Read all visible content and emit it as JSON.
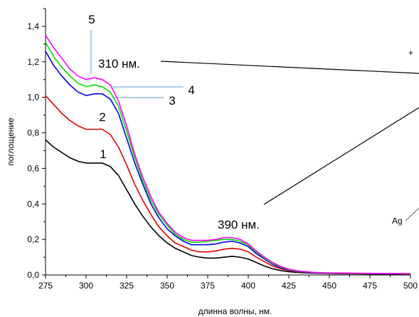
{
  "chart_data": {
    "type": "line",
    "title": "",
    "xlabel": "длинна волны, нм.",
    "ylabel": "поглощение",
    "xlim": [
      275,
      500
    ],
    "ylim": [
      0.0,
      1.5
    ],
    "x_ticks": [
      "275",
      "300",
      "325",
      "350",
      "375",
      "400",
      "425",
      "450",
      "475",
      "500"
    ],
    "y_ticks": [
      "0,0",
      "0,2",
      "0,4",
      "0,6",
      "0,8",
      "1,0",
      "1,2",
      "1,4"
    ],
    "grid": false,
    "legend": "none",
    "x": [
      275,
      280,
      285,
      290,
      295,
      300,
      305,
      310,
      315,
      320,
      325,
      330,
      335,
      340,
      345,
      350,
      355,
      360,
      365,
      370,
      375,
      380,
      385,
      390,
      395,
      400,
      405,
      410,
      415,
      420,
      425,
      430,
      440,
      450,
      460,
      470,
      480,
      490,
      500
    ],
    "series": [
      {
        "name": "1",
        "color": "#000000",
        "values": [
          0.76,
          0.72,
          0.69,
          0.66,
          0.64,
          0.63,
          0.63,
          0.63,
          0.61,
          0.56,
          0.48,
          0.4,
          0.33,
          0.27,
          0.22,
          0.18,
          0.15,
          0.13,
          0.11,
          0.1,
          0.095,
          0.095,
          0.1,
          0.105,
          0.1,
          0.09,
          0.07,
          0.05,
          0.035,
          0.025,
          0.018,
          0.014,
          0.01,
          0.008,
          0.007,
          0.006,
          0.005,
          0.005,
          0.004
        ]
      },
      {
        "name": "2",
        "color": "#e00000",
        "values": [
          1.01,
          0.96,
          0.91,
          0.87,
          0.84,
          0.82,
          0.82,
          0.82,
          0.79,
          0.72,
          0.62,
          0.51,
          0.42,
          0.34,
          0.27,
          0.22,
          0.18,
          0.16,
          0.14,
          0.13,
          0.13,
          0.135,
          0.145,
          0.15,
          0.145,
          0.13,
          0.1,
          0.075,
          0.05,
          0.035,
          0.025,
          0.018,
          0.012,
          0.009,
          0.008,
          0.007,
          0.006,
          0.006,
          0.005
        ]
      },
      {
        "name": "3",
        "color": "#0000e0",
        "values": [
          1.26,
          1.18,
          1.12,
          1.07,
          1.03,
          1.01,
          1.02,
          1.02,
          0.99,
          0.91,
          0.77,
          0.63,
          0.51,
          0.4,
          0.32,
          0.26,
          0.22,
          0.19,
          0.17,
          0.17,
          0.17,
          0.175,
          0.185,
          0.19,
          0.18,
          0.16,
          0.12,
          0.09,
          0.06,
          0.04,
          0.028,
          0.02,
          0.013,
          0.01,
          0.009,
          0.008,
          0.007,
          0.007,
          0.006
        ]
      },
      {
        "name": "4",
        "color": "#00dd00",
        "values": [
          1.31,
          1.23,
          1.17,
          1.12,
          1.08,
          1.06,
          1.07,
          1.06,
          1.03,
          0.95,
          0.81,
          0.66,
          0.53,
          0.42,
          0.34,
          0.28,
          0.23,
          0.2,
          0.185,
          0.185,
          0.19,
          0.195,
          0.2,
          0.2,
          0.19,
          0.17,
          0.13,
          0.095,
          0.065,
          0.045,
          0.03,
          0.022,
          0.014,
          0.011,
          0.01,
          0.009,
          0.008,
          0.008,
          0.007
        ]
      },
      {
        "name": "5",
        "color": "#ff00ff",
        "values": [
          1.35,
          1.28,
          1.22,
          1.16,
          1.12,
          1.1,
          1.11,
          1.1,
          1.07,
          0.98,
          0.84,
          0.68,
          0.55,
          0.44,
          0.35,
          0.29,
          0.24,
          0.21,
          0.195,
          0.195,
          0.195,
          0.2,
          0.21,
          0.21,
          0.2,
          0.175,
          0.135,
          0.1,
          0.07,
          0.048,
          0.033,
          0.024,
          0.015,
          0.012,
          0.011,
          0.01,
          0.009,
          0.009,
          0.008
        ]
      }
    ],
    "annotations": {
      "peak_310": "310 нм.",
      "peak_390": "390 нм.",
      "inset_label": "Ag",
      "inset_mark": "+"
    }
  }
}
